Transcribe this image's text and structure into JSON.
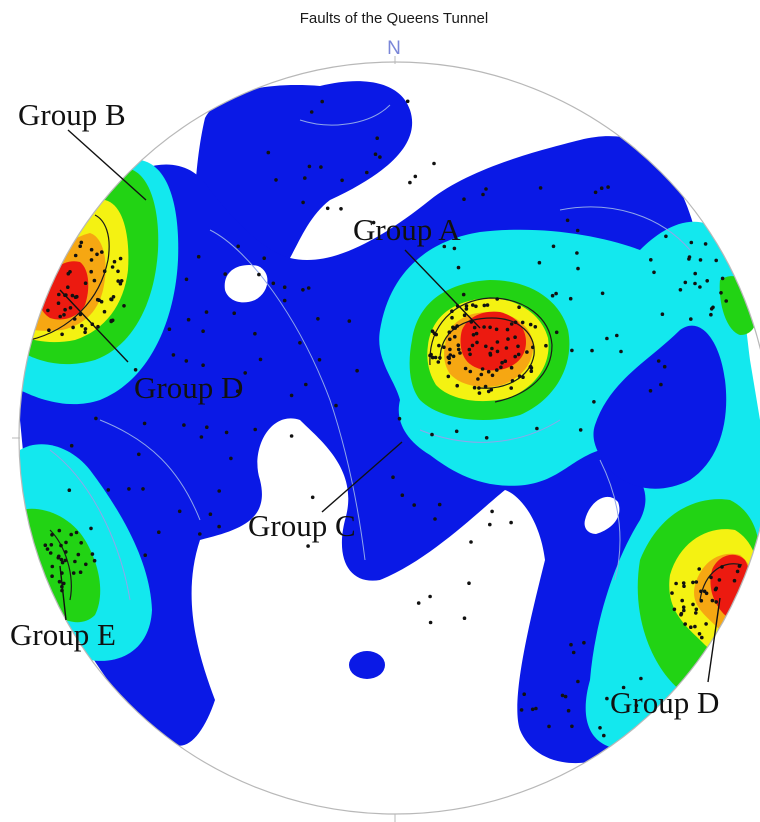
{
  "title": "Faults of the Queens Tunnel",
  "north_label": "N",
  "colors": {
    "background": "#ffffff",
    "outline": "#b8b8b8",
    "blue": "#0a19e6",
    "cyan": "#13e8ee",
    "green": "#22d314",
    "yellow": "#f4f212",
    "orange": "#f6a712",
    "red": "#ec1a10",
    "contour": "#8fa6ea",
    "point": "#111111"
  },
  "groups": [
    {
      "id": "group-a",
      "label": "Group A"
    },
    {
      "id": "group-b",
      "label": "Group B"
    },
    {
      "id": "group-c",
      "label": "Group C"
    },
    {
      "id": "group-d-left",
      "label": "Group D"
    },
    {
      "id": "group-d-right",
      "label": "Group D"
    },
    {
      "id": "group-e",
      "label": "Group E"
    }
  ]
}
